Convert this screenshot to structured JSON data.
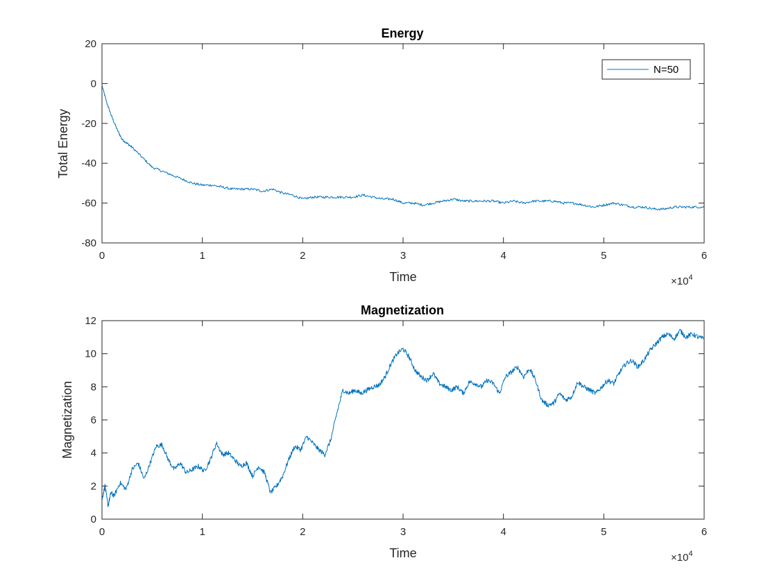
{
  "figure": {
    "line_color": "#0072BD",
    "axis_color": "#262626",
    "background": "#ffffff"
  },
  "chart_data": [
    {
      "type": "line",
      "title": "Energy",
      "xlabel": "Time",
      "ylabel": "Total Energy",
      "xlim": [
        0,
        60000
      ],
      "ylim": [
        -80,
        20
      ],
      "x_exponent_label": "×10",
      "x_exponent_power": "4",
      "xticks": [
        0,
        10000,
        20000,
        30000,
        40000,
        50000,
        60000
      ],
      "xtick_labels": [
        "0",
        "1",
        "2",
        "3",
        "4",
        "5",
        "6"
      ],
      "yticks": [
        -80,
        -60,
        -40,
        -20,
        0,
        20
      ],
      "ytick_labels": [
        "-80",
        "-60",
        "-40",
        "-20",
        "0",
        "20"
      ],
      "grid": false,
      "legend": {
        "placement": "top-right",
        "entries": [
          "N=50"
        ]
      },
      "series": [
        {
          "name": "N=50",
          "color": "#0072BD",
          "x": [
            0,
            500,
            1000,
            1500,
            2000,
            2500,
            3000,
            4000,
            5000,
            6000,
            7000,
            8000,
            9000,
            10000,
            11000,
            12000,
            13000,
            14000,
            15000,
            16000,
            17000,
            18000,
            19000,
            20000,
            21000,
            22000,
            23000,
            24000,
            25000,
            26000,
            27000,
            28000,
            29000,
            30000,
            31000,
            32000,
            33000,
            34000,
            35000,
            36000,
            37000,
            38000,
            39000,
            40000,
            41000,
            42000,
            43000,
            44000,
            45000,
            46000,
            47000,
            48000,
            49000,
            50000,
            51000,
            52000,
            53000,
            54000,
            55000,
            56000,
            57000,
            58000,
            59000,
            60000
          ],
          "y": [
            -1,
            -10,
            -17,
            -23,
            -28,
            -30,
            -32,
            -37,
            -42,
            -44,
            -46,
            -48,
            -50,
            -51,
            -51,
            -52,
            -53,
            -53,
            -53,
            -54,
            -53,
            -55,
            -56,
            -58,
            -57,
            -57,
            -57,
            -57,
            -57,
            -56,
            -57,
            -58,
            -58,
            -60,
            -60,
            -61,
            -60,
            -59,
            -58,
            -59,
            -59,
            -59,
            -59,
            -60,
            -59,
            -60,
            -59,
            -59,
            -59,
            -60,
            -60,
            -61,
            -62,
            -61,
            -60,
            -61,
            -62,
            -62,
            -63,
            -63,
            -62,
            -62,
            -62,
            -62
          ]
        }
      ]
    },
    {
      "type": "line",
      "title": "Magnetization",
      "xlabel": "Time",
      "ylabel": "Magnetization",
      "xlim": [
        0,
        60000
      ],
      "ylim": [
        0,
        12
      ],
      "x_exponent_label": "×10",
      "x_exponent_power": "4",
      "xticks": [
        0,
        10000,
        20000,
        30000,
        40000,
        50000,
        60000
      ],
      "xtick_labels": [
        "0",
        "1",
        "2",
        "3",
        "4",
        "5",
        "6"
      ],
      "yticks": [
        0,
        2,
        4,
        6,
        8,
        10,
        12
      ],
      "ytick_labels": [
        "0",
        "2",
        "4",
        "6",
        "8",
        "10",
        "12"
      ],
      "grid": false,
      "series": [
        {
          "color": "#0072BD",
          "x": [
            0,
            300,
            600,
            900,
            1200,
            1800,
            2400,
            3000,
            3600,
            4200,
            4800,
            5400,
            6000,
            6600,
            7200,
            7800,
            8400,
            9000,
            9600,
            10200,
            10800,
            11400,
            12000,
            12600,
            13200,
            13800,
            14400,
            15000,
            15600,
            16200,
            16800,
            17400,
            18000,
            18600,
            19200,
            19800,
            20400,
            21000,
            21600,
            22200,
            22800,
            23400,
            24000,
            24600,
            25200,
            25800,
            26400,
            27000,
            27600,
            28200,
            28800,
            29400,
            30000,
            30600,
            31200,
            31800,
            32400,
            33000,
            33600,
            34200,
            34800,
            35400,
            36000,
            36600,
            37200,
            37800,
            38400,
            39000,
            39600,
            40200,
            40800,
            41400,
            42000,
            42600,
            43200,
            43800,
            44400,
            45000,
            45600,
            46200,
            46800,
            47400,
            48000,
            48600,
            49200,
            49800,
            50400,
            51000,
            51600,
            52200,
            52800,
            53400,
            54000,
            54600,
            55200,
            55800,
            56400,
            57000,
            57600,
            58200,
            58800,
            59400,
            60000
          ],
          "y": [
            1.2,
            2.0,
            0.8,
            1.6,
            1.4,
            2.2,
            1.8,
            3.0,
            3.4,
            2.4,
            3.4,
            4.4,
            4.5,
            3.6,
            3.0,
            3.4,
            2.8,
            3.0,
            3.2,
            2.9,
            3.6,
            4.6,
            3.9,
            4.0,
            3.6,
            3.2,
            3.4,
            2.6,
            3.2,
            2.8,
            1.6,
            2.0,
            2.6,
            3.6,
            4.4,
            4.2,
            5.0,
            4.6,
            4.2,
            3.9,
            4.8,
            6.4,
            7.8,
            7.6,
            7.8,
            7.6,
            7.8,
            8.0,
            8.1,
            8.6,
            9.4,
            10.0,
            10.3,
            9.8,
            9.0,
            8.6,
            8.4,
            8.8,
            8.2,
            8.0,
            7.8,
            8.0,
            7.6,
            8.3,
            8.2,
            8.0,
            8.4,
            8.2,
            7.6,
            8.6,
            8.9,
            9.2,
            8.6,
            9.1,
            8.4,
            7.2,
            6.9,
            7.0,
            7.6,
            7.2,
            7.4,
            8.3,
            8.0,
            7.8,
            7.6,
            8.0,
            8.4,
            8.2,
            8.9,
            9.4,
            9.6,
            9.2,
            9.6,
            10.2,
            10.6,
            11.0,
            11.2,
            10.9,
            11.4,
            11.0,
            11.2,
            11.0,
            10.9
          ]
        }
      ]
    }
  ]
}
